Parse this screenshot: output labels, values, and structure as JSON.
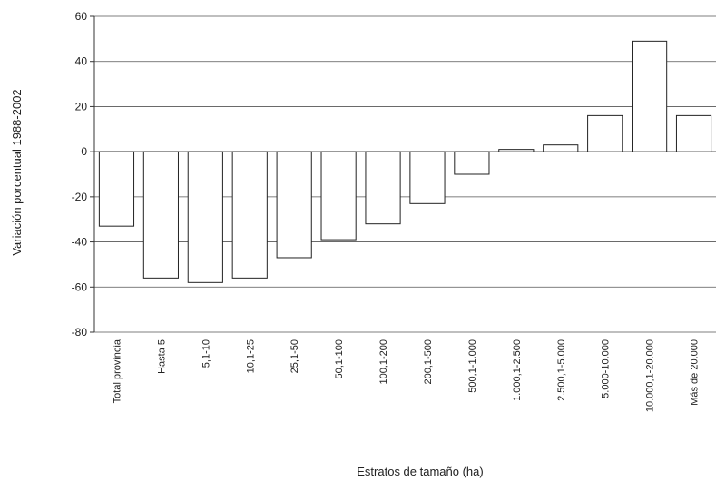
{
  "chart_data": {
    "type": "bar",
    "title": "",
    "ylabel": "Variación porcentual 1988-2002",
    "xlabel": "Estratos de tamaño (ha)",
    "ylim": [
      -80,
      60
    ],
    "yticks": [
      60,
      40,
      20,
      0,
      -20,
      -40,
      -60,
      -80
    ],
    "grid": true,
    "categories": [
      "Total provincia",
      "Hasta 5",
      "5,1-10",
      "10,1-25",
      "25,1-50",
      "50,1-100",
      "100,1-200",
      "200,1-500",
      "500,1-1.000",
      "1.000,1-2.500",
      "2.500,1-5.000",
      "5.000-10.000",
      "10.000,1-20.000",
      "Más de 20.000"
    ],
    "values": [
      -33,
      -56,
      -58,
      -56,
      -47,
      -39,
      -32,
      -23,
      -10,
      1,
      3,
      16,
      49,
      16
    ]
  }
}
